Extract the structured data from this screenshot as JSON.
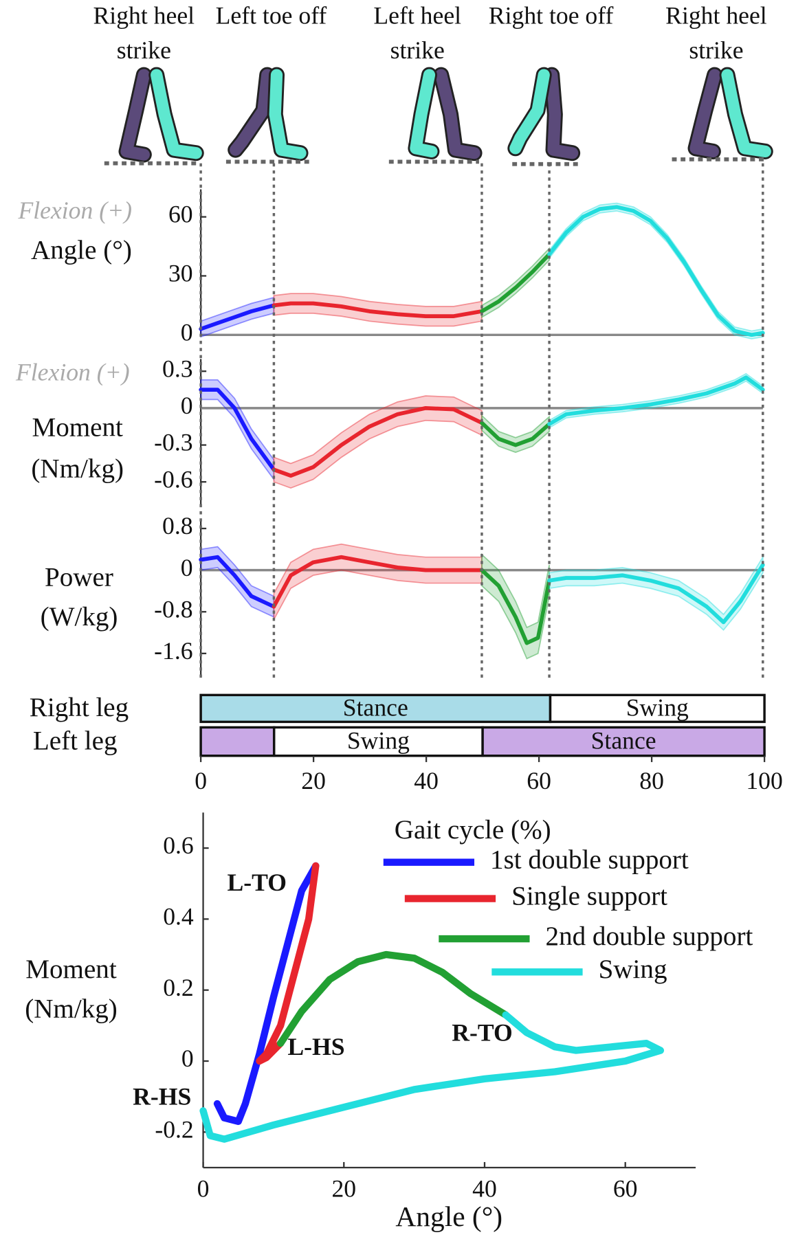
{
  "events": [
    {
      "label": "Right heel strike",
      "x": 0
    },
    {
      "label": "Left toe off",
      "x": 13
    },
    {
      "label": "Left heel strike",
      "x": 50
    },
    {
      "label": "Right toe off",
      "x": 62
    },
    {
      "label": "Right heel strike",
      "x": 100
    }
  ],
  "chart_data": [
    {
      "type": "line",
      "flexion_label": "Flexion (+)",
      "ylabel": [
        "Angle (°)"
      ],
      "xlim": [
        0,
        100
      ],
      "ylim": [
        -1,
        74
      ],
      "yticks": [
        0,
        30,
        60
      ],
      "zero_line": true,
      "series": [
        {
          "name": "1st double support",
          "color": "#1a1aff",
          "x": [
            0,
            3,
            6,
            9,
            13
          ],
          "values": [
            3,
            6,
            9,
            12,
            15
          ],
          "sd": 4
        },
        {
          "name": "Single support",
          "color": "#e8252e",
          "x": [
            13,
            16,
            20,
            25,
            30,
            35,
            40,
            45,
            50
          ],
          "values": [
            15,
            16,
            16,
            14.5,
            12,
            10.5,
            9.5,
            9.5,
            12
          ],
          "sd": 5
        },
        {
          "name": "2nd double support",
          "color": "#22a033",
          "x": [
            50,
            53,
            56,
            59,
            62
          ],
          "values": [
            12,
            17,
            24,
            32,
            41
          ],
          "sd": 3
        },
        {
          "name": "Swing",
          "color": "#22dddd",
          "x": [
            62,
            65,
            68,
            71,
            74,
            77,
            80,
            83,
            86,
            89,
            92,
            95,
            98,
            100
          ],
          "values": [
            41,
            52,
            60,
            64,
            65,
            63,
            58,
            49,
            37,
            23,
            10,
            2,
            0,
            1
          ],
          "sd": 2
        }
      ]
    },
    {
      "type": "line",
      "flexion_label": "Flexion (+)",
      "ylabel": [
        "Moment",
        "(Nm/kg)"
      ],
      "xlim": [
        0,
        100
      ],
      "ylim": [
        -0.8,
        0.4
      ],
      "yticks": [
        0.3,
        0,
        -0.3,
        -0.6
      ],
      "zero_line": true,
      "series": [
        {
          "name": "1st double support",
          "color": "#1a1aff",
          "x": [
            0,
            3,
            6,
            9,
            13
          ],
          "values": [
            0.15,
            0.15,
            0.0,
            -0.25,
            -0.5
          ],
          "sd": 0.08
        },
        {
          "name": "Single support",
          "color": "#e8252e",
          "x": [
            13,
            16,
            20,
            25,
            30,
            35,
            40,
            45,
            50
          ],
          "values": [
            -0.5,
            -0.55,
            -0.48,
            -0.3,
            -0.15,
            -0.05,
            0,
            -0.01,
            -0.12
          ],
          "sd": 0.1
        },
        {
          "name": "2nd double support",
          "color": "#22a033",
          "x": [
            50,
            53,
            56,
            59,
            62
          ],
          "values": [
            -0.12,
            -0.25,
            -0.3,
            -0.25,
            -0.13
          ],
          "sd": 0.06
        },
        {
          "name": "Swing",
          "color": "#22dddd",
          "x": [
            62,
            65,
            70,
            75,
            80,
            85,
            90,
            95,
            97,
            100
          ],
          "values": [
            -0.13,
            -0.05,
            -0.02,
            0.0,
            0.03,
            0.07,
            0.12,
            0.2,
            0.25,
            0.15
          ],
          "sd": 0.03
        }
      ]
    },
    {
      "type": "line",
      "ylabel": [
        "Power",
        "(W/kg)"
      ],
      "xlim": [
        0,
        100
      ],
      "ylim": [
        -2.05,
        0.95
      ],
      "yticks": [
        0.8,
        0,
        -0.8,
        -1.6
      ],
      "zero_line": true,
      "series": [
        {
          "name": "1st double support",
          "color": "#1a1aff",
          "x": [
            0,
            3,
            6,
            9,
            13
          ],
          "values": [
            0.2,
            0.25,
            -0.1,
            -0.5,
            -0.7
          ],
          "sd": 0.2
        },
        {
          "name": "Single support",
          "color": "#e8252e",
          "x": [
            13,
            16,
            20,
            25,
            30,
            35,
            40,
            45,
            50
          ],
          "values": [
            -0.7,
            -0.1,
            0.15,
            0.25,
            0.15,
            0.05,
            0.0,
            0.0,
            0.0
          ],
          "sd": 0.25
        },
        {
          "name": "2nd double support",
          "color": "#22a033",
          "x": [
            50,
            53,
            56,
            58,
            60,
            62
          ],
          "values": [
            0,
            -0.3,
            -0.9,
            -1.4,
            -1.3,
            -0.2
          ],
          "sd": 0.3
        },
        {
          "name": "Swing",
          "color": "#22dddd",
          "x": [
            62,
            65,
            70,
            75,
            80,
            85,
            90,
            93,
            96,
            100
          ],
          "values": [
            -0.2,
            -0.15,
            -0.15,
            -0.1,
            -0.2,
            -0.35,
            -0.7,
            -1.0,
            -0.6,
            0.1
          ],
          "sd": 0.15
        }
      ]
    },
    {
      "type": "timeline",
      "xlabel": "Gait cycle (%)",
      "xlim": [
        0,
        100
      ],
      "xticks": [
        0,
        20,
        40,
        60,
        80,
        100
      ],
      "rows": [
        {
          "label": "Right leg",
          "phases": [
            {
              "name": "Stance",
              "start": 0,
              "end": 62,
              "color": "#a9dce8"
            },
            {
              "name": "Swing",
              "start": 62,
              "end": 100,
              "color": "#ffffff"
            }
          ]
        },
        {
          "label": "Left leg",
          "phases": [
            {
              "name": null,
              "start": 0,
              "end": 13,
              "color": "#c9a9e6"
            },
            {
              "name": "Swing",
              "start": 13,
              "end": 50,
              "color": "#ffffff"
            },
            {
              "name": "Stance",
              "start": 50,
              "end": 100,
              "color": "#c9a9e6"
            }
          ]
        }
      ]
    },
    {
      "type": "loop",
      "xlabel": "Angle (°)",
      "ylabel": [
        "Moment",
        "(Nm/kg)"
      ],
      "xlim": [
        0,
        70
      ],
      "ylim": [
        -0.3,
        0.7
      ],
      "xticks": [
        0,
        20,
        40,
        60
      ],
      "yticks": [
        0.6,
        0.4,
        0.2,
        0,
        -0.2
      ],
      "legend": true,
      "annotations": [
        "L-TO",
        "L-HS",
        "R-TO",
        "R-HS"
      ],
      "series": [
        {
          "name": "1st double support",
          "color": "#1a1aff",
          "x": [
            2,
            3,
            5,
            6,
            7,
            8,
            10,
            12,
            14,
            16
          ],
          "values": [
            -0.12,
            -0.16,
            -0.17,
            -0.12,
            -0.05,
            0.02,
            0.18,
            0.33,
            0.48,
            0.55
          ]
        },
        {
          "name": "Single support",
          "color": "#e8252e",
          "x": [
            16,
            15,
            13,
            11,
            9,
            8,
            9,
            11
          ],
          "values": [
            0.55,
            0.4,
            0.25,
            0.1,
            0.02,
            0.0,
            0.01,
            0.05
          ]
        },
        {
          "name": "2nd double support",
          "color": "#22a033",
          "x": [
            11,
            14,
            18,
            22,
            26,
            30,
            34,
            38,
            43
          ],
          "values": [
            0.05,
            0.14,
            0.23,
            0.28,
            0.3,
            0.29,
            0.25,
            0.19,
            0.13
          ]
        },
        {
          "name": "Swing",
          "color": "#22dddd",
          "x": [
            43,
            46,
            50,
            53,
            58,
            63,
            65,
            60,
            50,
            40,
            30,
            20,
            10,
            3,
            1,
            0
          ],
          "values": [
            0.13,
            0.08,
            0.04,
            0.03,
            0.04,
            0.05,
            0.03,
            0.0,
            -0.03,
            -0.05,
            -0.08,
            -0.13,
            -0.18,
            -0.22,
            -0.21,
            -0.14
          ]
        }
      ]
    }
  ]
}
